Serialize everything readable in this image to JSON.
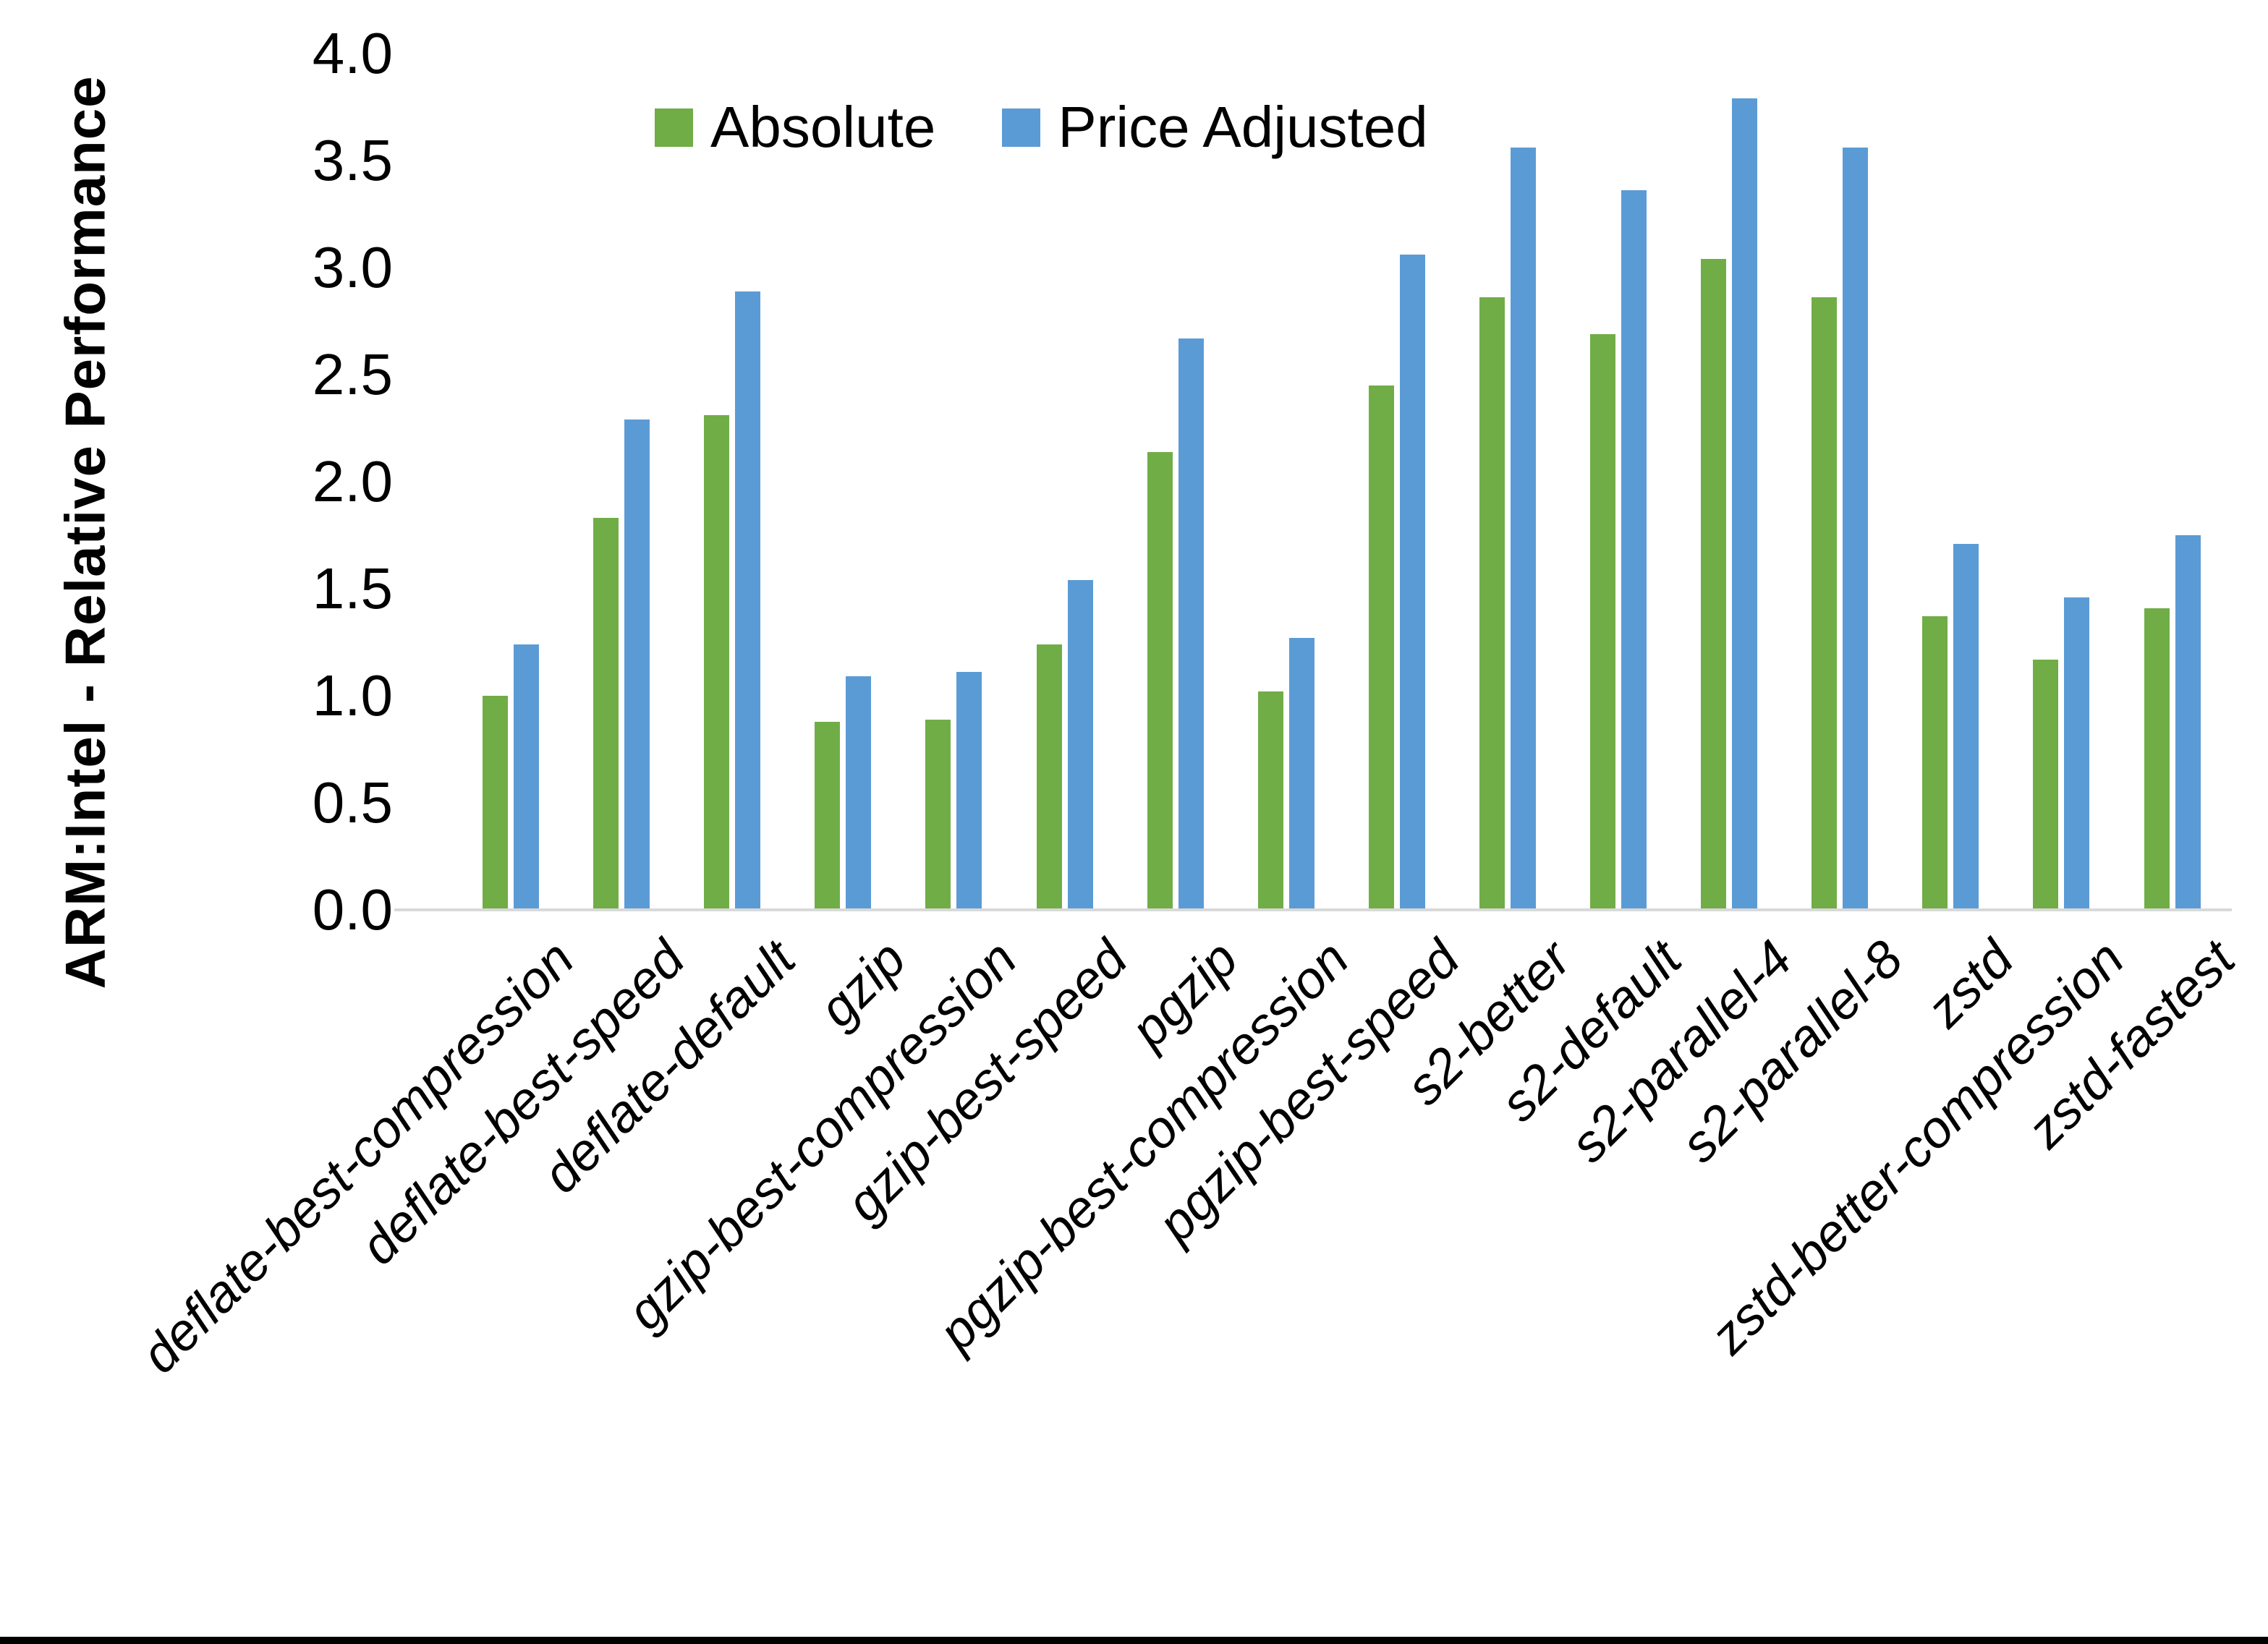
{
  "page": {
    "background": "#FFFFFF",
    "bottom_border_color": "#000000"
  },
  "chart_data": {
    "type": "bar",
    "title": "",
    "xlabel": "",
    "ylabel": "ARM:Intel - Relative Performance",
    "ylim": [
      0.0,
      4.0
    ],
    "ytick_step": 0.5,
    "ytick_labels": [
      "0.0",
      "0.5",
      "1.0",
      "1.5",
      "2.0",
      "2.5",
      "3.0",
      "3.5",
      "4.0"
    ],
    "grid": false,
    "legend_position": "top-center",
    "axis_line_color": "#D9D9D9",
    "text_color": "#000000",
    "categories": [
      "deflate-best-compression",
      "deflate-best-speed",
      "deflate-default",
      "gzip",
      "gzip-best-compression",
      "gzip-best-speed",
      "pgzip",
      "pgzip-best-compression",
      "pgzip-best-speed",
      "s2-better",
      "s2-default",
      "s2-parallel-4",
      "s2-parallel-8",
      "zstd",
      "zstd-better-compression",
      "zstd-fastest"
    ],
    "series": [
      {
        "name": "Absolute",
        "color": "#70AD47",
        "values": [
          1.0,
          1.83,
          2.31,
          0.88,
          0.89,
          1.24,
          2.14,
          1.02,
          2.45,
          2.86,
          2.69,
          3.04,
          2.86,
          1.37,
          1.17,
          1.41
        ]
      },
      {
        "name": "Price Adjusted",
        "color": "#5B9BD5",
        "values": [
          1.24,
          2.29,
          2.89,
          1.09,
          1.11,
          1.54,
          2.67,
          1.27,
          3.06,
          3.56,
          3.36,
          3.79,
          3.56,
          1.71,
          1.46,
          1.75
        ]
      }
    ]
  }
}
